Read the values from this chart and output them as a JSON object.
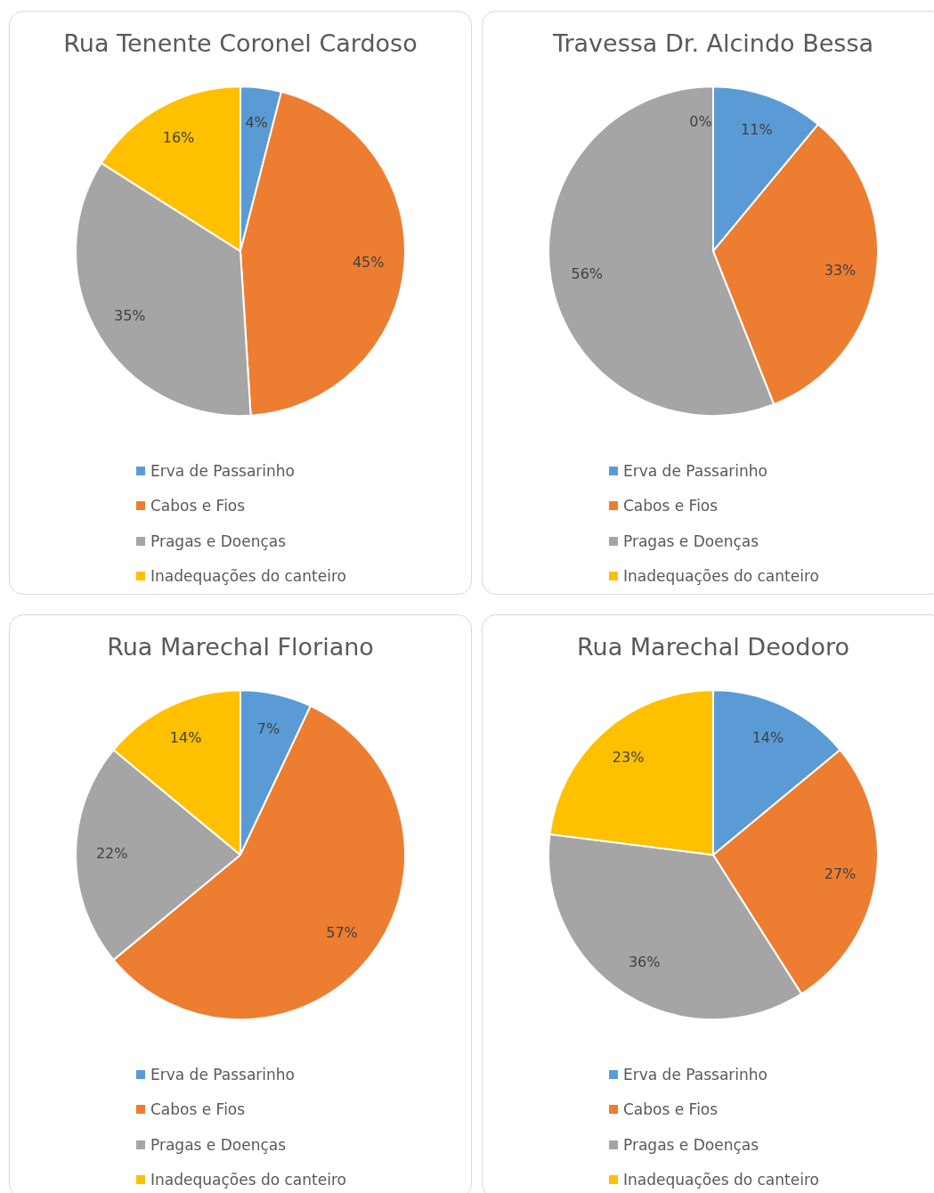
{
  "chart_data": [
    {
      "type": "pie",
      "title": "Rua Tenente Coronel Cardoso",
      "categories": [
        "Erva de Passarinho",
        "Cabos e Fios",
        "Pragas e Doenças",
        "Inadequações do canteiro"
      ],
      "values": [
        4,
        45,
        35,
        16
      ],
      "colors": [
        "#5b9bd5",
        "#ed7d31",
        "#a5a5a5",
        "#ffc000"
      ],
      "value_labels": [
        "4%",
        "45%",
        "35%",
        "16%"
      ],
      "legend": "bottom"
    },
    {
      "type": "pie",
      "title": "Travessa Dr. Alcindo Bessa",
      "categories": [
        "Erva de Passarinho",
        "Cabos e Fios",
        "Pragas e Doenças",
        "Inadequações do canteiro"
      ],
      "values": [
        11,
        33,
        56,
        0
      ],
      "colors": [
        "#5b9bd5",
        "#ed7d31",
        "#a5a5a5",
        "#ffc000"
      ],
      "value_labels": [
        "11%",
        "33%",
        "56%",
        "0%"
      ],
      "legend": "bottom"
    },
    {
      "type": "pie",
      "title": "Rua Marechal Floriano",
      "categories": [
        "Erva de Passarinho",
        "Cabos e Fios",
        "Pragas e Doenças",
        "Inadequações do canteiro"
      ],
      "values": [
        7,
        57,
        22,
        14
      ],
      "colors": [
        "#5b9bd5",
        "#ed7d31",
        "#a5a5a5",
        "#ffc000"
      ],
      "value_labels": [
        "7%",
        "57%",
        "22%",
        "14%"
      ],
      "legend": "bottom"
    },
    {
      "type": "pie",
      "title": "Rua Marechal Deodoro",
      "categories": [
        "Erva de Passarinho",
        "Cabos e Fios",
        "Pragas e Doenças",
        "Inadequações do canteiro"
      ],
      "values": [
        14,
        27,
        36,
        23
      ],
      "colors": [
        "#5b9bd5",
        "#ed7d31",
        "#a5a5a5",
        "#ffc000"
      ],
      "value_labels": [
        "14%",
        "27%",
        "36%",
        "23%"
      ],
      "legend": "bottom"
    }
  ]
}
